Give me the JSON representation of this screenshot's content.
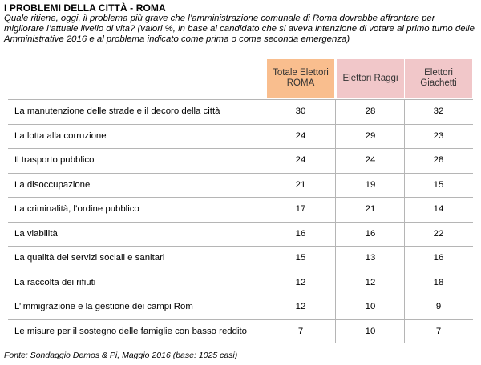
{
  "title": "I PROBLEMI DELLA CITTÀ - ROMA",
  "subtitle": "Quale ritiene, oggi, il problema più grave che l’amministrazione comunale di Roma dovrebbe affrontare per migliorare l’attuale livello di vita? (valori %, in base al candidato che si aveva intenzione di votare al primo turno delle Amministrative 2016 e al problema indicato come prima o come seconda emergenza)",
  "source": "Fonte: Sondaggio Demos & Pi, Maggio 2016 (base: 1025 casi)",
  "colors": {
    "total_header": "#f9be8e",
    "candidate_header": "#f1c7c9",
    "grid": "#b5b5b5"
  },
  "chart_data": {
    "type": "table",
    "columns": [
      "Totale Elettori ROMA",
      "Elettori Raggi",
      "Elettori Giachetti"
    ],
    "rows": [
      {
        "label": "La manutenzione delle strade e il decoro della città",
        "values": [
          30,
          28,
          32
        ]
      },
      {
        "label": "La lotta alla corruzione",
        "values": [
          24,
          29,
          23
        ]
      },
      {
        "label": "Il trasporto pubblico",
        "values": [
          24,
          24,
          28
        ]
      },
      {
        "label": "La disoccupazione",
        "values": [
          21,
          19,
          15
        ]
      },
      {
        "label": "La criminalità, l’ordine pubblico",
        "values": [
          17,
          21,
          14
        ]
      },
      {
        "label": "La viabilità",
        "values": [
          16,
          16,
          22
        ]
      },
      {
        "label": "La qualità dei servizi sociali e sanitari",
        "values": [
          15,
          13,
          16
        ]
      },
      {
        "label": "La raccolta dei rifiuti",
        "values": [
          12,
          12,
          18
        ]
      },
      {
        "label": "L’immigrazione e la gestione dei campi Rom",
        "values": [
          12,
          10,
          9
        ]
      },
      {
        "label": "Le misure per il sostegno delle famiglie con basso reddito",
        "values": [
          7,
          10,
          7
        ]
      }
    ]
  }
}
